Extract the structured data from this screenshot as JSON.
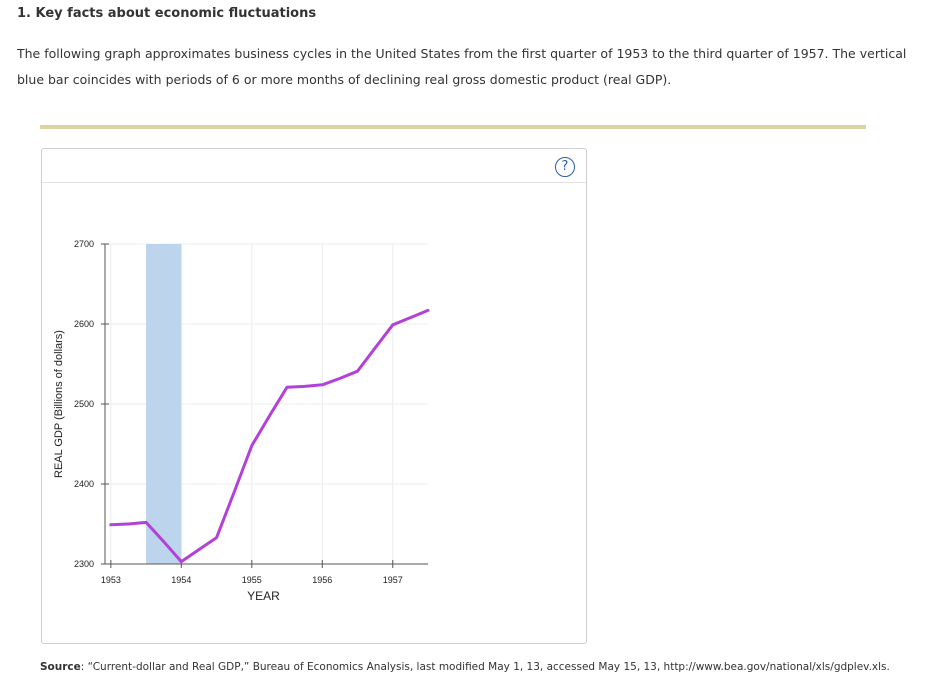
{
  "question": {
    "title": "1. Key facts about economic fluctuations",
    "intro": "The following graph approximates business cycles in the United States from the first quarter of 1953 to the third quarter of 1957. The vertical blue bar coincides with periods of 6 or more months of declining real gross domestic product (real GDP)."
  },
  "help": {
    "label": "?"
  },
  "source": {
    "label": "Source",
    "text": ": “Current-dollar and Real GDP,” Bureau of Economics Analysis, last modified May 1, 13, accessed May 15, 13, http://www.bea.gov/national/xls/gdplev.xls."
  },
  "chart_data": {
    "type": "line",
    "title": "",
    "xlabel": "YEAR",
    "ylabel": "REAL GDP (Billions of dollars)",
    "xlim": [
      1952.917,
      1957.5
    ],
    "ylim": [
      2300,
      2700
    ],
    "x_ticks": [
      1953,
      1954,
      1955,
      1956,
      1957
    ],
    "y_ticks": [
      2300,
      2400,
      2500,
      2600,
      2700
    ],
    "grid": true,
    "recession_band": {
      "start": 1953.5,
      "end": 1954.0,
      "color": "#bcd4ec"
    },
    "series": [
      {
        "color": "#b341d9",
        "x": [
          1953.0,
          1953.25,
          1953.5,
          1953.75,
          1954.0,
          1954.25,
          1954.5,
          1954.75,
          1955.0,
          1955.25,
          1955.5,
          1955.75,
          1956.0,
          1956.25,
          1956.5,
          1956.75,
          1957.0,
          1957.25,
          1957.5
        ],
        "y": [
          2349,
          2350,
          2352,
          2328,
          2303,
          2318,
          2333,
          2390,
          2448,
          2485,
          2521,
          2522,
          2524,
          2532,
          2541,
          2570,
          2599,
          2608,
          2617
        ]
      }
    ]
  }
}
